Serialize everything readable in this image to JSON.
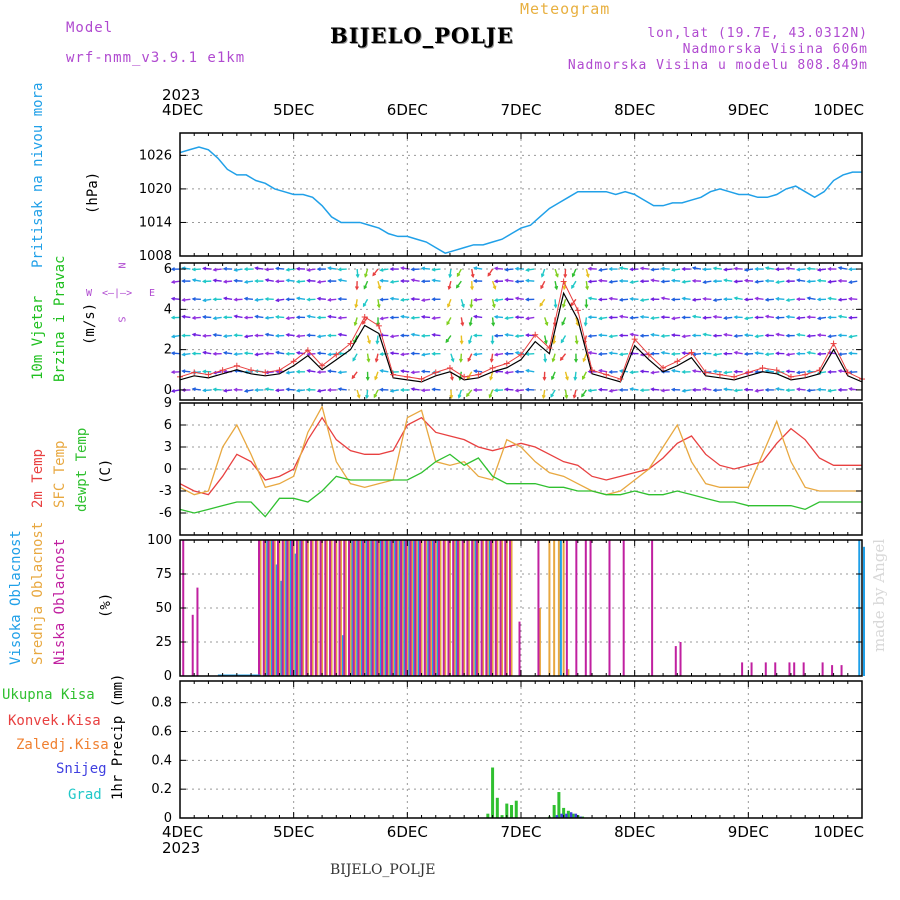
{
  "header": {
    "model_label": "Model",
    "model_name": "wrf-nmm_v3.9.1 e1km",
    "title": "BIJELO_POLJE",
    "meteogram_label": "Meteogram",
    "lonlat": "lon,lat (19.7E, 43.0312N)",
    "elevation": "Nadmorska Visina 606m",
    "model_elevation": "Nadmorska Visina u modelu 808.849m"
  },
  "footer_title": "BIJELO_POLJE",
  "watermark": "made by Angel",
  "time_axis": {
    "year_top": "2023",
    "year_bottom": "2023",
    "days": [
      "4DEC",
      "5DEC",
      "6DEC",
      "7DEC",
      "8DEC",
      "9DEC",
      "10DEC"
    ]
  },
  "panel_labels": {
    "pressure": {
      "title": "Pritisak na nivou mora",
      "unit": "(hPa)"
    },
    "wind": {
      "title1": "10m Vjetar",
      "title2": "Brzina i Pravac",
      "unit": "(m/s)",
      "compass": [
        "W",
        "E",
        "N",
        "S"
      ]
    },
    "temp": {
      "t2m": "2m Temp",
      "sfc": "SFC Temp",
      "dew": "dewpt Temp",
      "unit": "(C)"
    },
    "cloud": {
      "high": "Visoka Oblacnost",
      "mid": "Srednja Oblacnost",
      "low": "Niska Oblacnost",
      "unit": "(%)"
    },
    "precip": {
      "total": "Ukupna Kisa",
      "conv": "Konvek.Kisa",
      "frz": "Zaledj.Kisa",
      "snow": "Snijeg",
      "hail": "Grad",
      "ylabel": "1hr Precip (mm)"
    }
  },
  "colors": {
    "pressure": "#20a0e8",
    "t2m": "#e84040",
    "sfc": "#e8a840",
    "dew": "#30c030",
    "high": "#20a0e8",
    "mid": "#e8a840",
    "low": "#c020a0",
    "total": "#30c030",
    "conv": "#e84040",
    "frz": "#f08030",
    "snow": "#4040e0",
    "hail": "#20c8c8",
    "title_pressure": "#20a0e8",
    "title_wind": "#20c020",
    "purple": "#b04ad0"
  },
  "chart_data": [
    {
      "type": "line",
      "name": "pressure",
      "ylim": [
        1008,
        1030
      ],
      "yticks": [
        1008,
        1014,
        1020,
        1026
      ],
      "x_hours": [
        0,
        2,
        4,
        6,
        8,
        10,
        12,
        14,
        16,
        18,
        20,
        22,
        24,
        26,
        28,
        30,
        32,
        34,
        36,
        38,
        40,
        42,
        44,
        46,
        48,
        50,
        52,
        54,
        56,
        58,
        60,
        62,
        64,
        66,
        68,
        70,
        72,
        74,
        76,
        78,
        80,
        82,
        84,
        86,
        88,
        90,
        92,
        94,
        96,
        98,
        100,
        102,
        104,
        106,
        108,
        110,
        112,
        114,
        116,
        118,
        120,
        122,
        124,
        126,
        128,
        130,
        132,
        134,
        136,
        138,
        140,
        142,
        144
      ],
      "y": [
        1026.5,
        1027,
        1027.5,
        1027,
        1025.5,
        1023.5,
        1022.5,
        1022.5,
        1021.5,
        1021,
        1020,
        1019.5,
        1019,
        1019,
        1018.5,
        1017,
        1015,
        1014,
        1014,
        1014,
        1013.5,
        1013,
        1012,
        1011.5,
        1011.5,
        1011,
        1010.5,
        1009.5,
        1008.5,
        1009,
        1009.5,
        1010,
        1010,
        1010.5,
        1011,
        1012,
        1013,
        1013.5,
        1015,
        1016.5,
        1017.5,
        1018.5,
        1019.5,
        1019.5,
        1019.5,
        1019.5,
        1019,
        1019.5,
        1019,
        1018,
        1017,
        1017,
        1017.5,
        1017.5,
        1018,
        1018.5,
        1019.5,
        1020,
        1019.5,
        1019,
        1019,
        1018.5,
        1018.5,
        1019,
        1020,
        1020.5,
        1019.5,
        1018.5,
        1019.5,
        1021.5,
        1022.5,
        1023,
        1023
      ]
    },
    {
      "type": "line",
      "name": "wind_speed",
      "ylim": [
        -0.5,
        6.3
      ],
      "yticks": [
        0,
        2,
        4,
        6
      ],
      "x_hours": [
        0,
        3,
        6,
        9,
        12,
        15,
        18,
        21,
        24,
        27,
        30,
        33,
        36,
        39,
        42,
        45,
        48,
        51,
        54,
        57,
        60,
        63,
        66,
        69,
        72,
        75,
        78,
        81,
        84,
        87,
        90,
        93,
        96,
        99,
        102,
        105,
        108,
        111,
        114,
        117,
        120,
        123,
        126,
        129,
        132,
        135,
        138,
        141,
        144
      ],
      "y": [
        0.5,
        0.7,
        0.6,
        0.8,
        1.0,
        0.8,
        0.7,
        0.8,
        1.2,
        1.7,
        1.0,
        1.5,
        2.0,
        3.2,
        2.8,
        0.6,
        0.5,
        0.4,
        0.7,
        0.9,
        0.5,
        0.6,
        0.9,
        1.1,
        1.5,
        2.4,
        1.8,
        4.8,
        3.5,
        0.8,
        0.6,
        0.4,
        2.2,
        1.5,
        0.9,
        1.2,
        1.6,
        0.7,
        0.6,
        0.5,
        0.7,
        0.9,
        0.8,
        0.5,
        0.6,
        0.8,
        2.0,
        0.7,
        0.4
      ]
    },
    {
      "type": "line",
      "name": "temperature",
      "ylim": [
        -9,
        9
      ],
      "yticks": [
        -6,
        -3,
        0,
        3,
        6,
        9
      ],
      "x_hours": [
        0,
        3,
        6,
        9,
        12,
        15,
        18,
        21,
        24,
        27,
        30,
        33,
        36,
        39,
        42,
        45,
        48,
        51,
        54,
        57,
        60,
        63,
        66,
        69,
        72,
        75,
        78,
        81,
        84,
        87,
        90,
        93,
        96,
        99,
        102,
        105,
        108,
        111,
        114,
        117,
        120,
        123,
        126,
        129,
        132,
        135,
        138,
        141,
        144
      ],
      "series": [
        {
          "name": "2m Temp",
          "values": [
            -2.0,
            -3.0,
            -3.5,
            -1.0,
            2.0,
            1.0,
            -1.5,
            -1.0,
            0.0,
            4.0,
            7.0,
            4.0,
            2.5,
            2.0,
            2.0,
            2.5,
            6.0,
            7.0,
            5.0,
            4.5,
            4.0,
            3.0,
            2.5,
            3.0,
            3.5,
            3.0,
            2.0,
            1.0,
            0.5,
            -1.0,
            -1.5,
            -1.0,
            -0.5,
            0.0,
            1.5,
            3.5,
            4.5,
            2.0,
            0.5,
            0.0,
            0.5,
            1.0,
            3.5,
            5.5,
            4.0,
            1.5,
            0.5,
            0.5,
            0.5
          ]
        },
        {
          "name": "SFC Temp",
          "values": [
            -2.5,
            -3.5,
            -3.0,
            3.0,
            6.0,
            2.0,
            -2.5,
            -2.0,
            -1.0,
            5.0,
            8.5,
            1.0,
            -2.0,
            -2.5,
            -2.0,
            -1.5,
            7.0,
            8.0,
            1.0,
            0.5,
            1.0,
            -1.0,
            -1.5,
            4.0,
            3.0,
            1.0,
            -0.5,
            -1.0,
            -2.0,
            -3.0,
            -3.5,
            -3.0,
            -1.5,
            0.0,
            3.0,
            6.0,
            1.0,
            -2.0,
            -2.5,
            -2.5,
            -2.5,
            2.0,
            6.5,
            1.0,
            -2.5,
            -3.0,
            -3.0,
            -3.0,
            -3.0
          ]
        },
        {
          "name": "dewpt Temp",
          "values": [
            -5.5,
            -6.0,
            -5.5,
            -5.0,
            -4.5,
            -4.5,
            -6.5,
            -4.0,
            -4.0,
            -4.5,
            -3.0,
            -1.0,
            -1.5,
            -1.5,
            -1.5,
            -1.5,
            -1.5,
            -0.5,
            1.0,
            2.0,
            0.5,
            1.5,
            -1.0,
            -2.0,
            -2.0,
            -2.0,
            -2.5,
            -2.5,
            -3.0,
            -3.0,
            -3.5,
            -3.5,
            -3.0,
            -3.5,
            -3.5,
            -3.0,
            -3.5,
            -4.0,
            -4.5,
            -4.5,
            -5.0,
            -5.0,
            -5.0,
            -5.0,
            -5.5,
            -4.5,
            -4.5,
            -4.5,
            -4.5
          ]
        }
      ]
    },
    {
      "type": "bar",
      "name": "cloud_cover",
      "ylim": [
        0,
        100
      ],
      "yticks": [
        0,
        25,
        50,
        75,
        100
      ],
      "high_hours": [
        18,
        19,
        20,
        21,
        22,
        23,
        24,
        25,
        34,
        36,
        37,
        38,
        39,
        40,
        41,
        42,
        43,
        44,
        45,
        46,
        47,
        48,
        49,
        50,
        52,
        53,
        54,
        58,
        62,
        65,
        80,
        143,
        144
      ],
      "high_vals": [
        100,
        100,
        82,
        70,
        100,
        100,
        90,
        100,
        30,
        100,
        100,
        100,
        100,
        100,
        100,
        100,
        100,
        100,
        100,
        100,
        100,
        100,
        100,
        100,
        100,
        100,
        100,
        100,
        100,
        100,
        100,
        100,
        95
      ],
      "mid_hours": [
        17,
        18,
        19,
        20,
        21,
        22,
        23,
        24,
        25,
        26,
        27,
        28,
        29,
        30,
        31,
        32,
        33,
        34,
        35,
        36,
        37,
        38,
        39,
        40,
        41,
        42,
        43,
        44,
        45,
        46,
        47,
        48,
        49,
        50,
        51,
        52,
        53,
        54,
        55,
        56,
        57,
        58,
        59,
        60,
        61,
        62,
        63,
        64,
        65,
        66,
        67,
        68,
        69,
        70,
        76,
        78,
        79,
        80,
        81,
        82
      ],
      "mid_vals": [
        100,
        100,
        100,
        100,
        100,
        100,
        100,
        100,
        100,
        100,
        100,
        100,
        100,
        100,
        100,
        100,
        100,
        100,
        100,
        100,
        100,
        100,
        100,
        100,
        100,
        100,
        100,
        100,
        100,
        100,
        100,
        100,
        100,
        100,
        100,
        100,
        100,
        100,
        100,
        100,
        100,
        100,
        100,
        100,
        100,
        100,
        100,
        100,
        100,
        100,
        100,
        100,
        100,
        100,
        50,
        100,
        100,
        100,
        100,
        5
      ],
      "low_hours": [
        1,
        3,
        4,
        17,
        18,
        19,
        20,
        21,
        22,
        23,
        24,
        25,
        26,
        27,
        28,
        29,
        30,
        31,
        32,
        33,
        34,
        35,
        36,
        37,
        38,
        39,
        40,
        41,
        42,
        43,
        44,
        45,
        46,
        47,
        48,
        49,
        50,
        51,
        52,
        53,
        54,
        55,
        56,
        57,
        58,
        59,
        60,
        61,
        62,
        63,
        64,
        65,
        66,
        67,
        68,
        69,
        70,
        72,
        76,
        82,
        84,
        86,
        87,
        91,
        94,
        100,
        105,
        106,
        119,
        121,
        124,
        126,
        129,
        130,
        132,
        136,
        138,
        140
      ],
      "low_vals": [
        100,
        45,
        65,
        100,
        100,
        100,
        100,
        100,
        100,
        100,
        100,
        100,
        100,
        100,
        100,
        100,
        100,
        100,
        100,
        100,
        100,
        100,
        100,
        100,
        100,
        100,
        100,
        100,
        100,
        100,
        100,
        100,
        100,
        100,
        100,
        100,
        100,
        100,
        100,
        100,
        100,
        100,
        100,
        100,
        100,
        100,
        100,
        100,
        100,
        100,
        100,
        100,
        100,
        100,
        100,
        100,
        100,
        40,
        100,
        100,
        100,
        100,
        100,
        100,
        100,
        100,
        22,
        25,
        10,
        10,
        10,
        10,
        10,
        10,
        10,
        10,
        8,
        8
      ]
    },
    {
      "type": "bar",
      "name": "precipitation",
      "ylim": [
        0,
        0.95
      ],
      "yticks": [
        0,
        0.2,
        0.4,
        0.6,
        0.8
      ],
      "total_hours": [
        65,
        66,
        67,
        68,
        69,
        70,
        71,
        78,
        79,
        80,
        81,
        82,
        83,
        84,
        85
      ],
      "total_vals": [
        0.03,
        0.35,
        0.14,
        0.02,
        0.1,
        0.09,
        0.12,
        0.01,
        0.09,
        0.18,
        0.07,
        0.05,
        0.03,
        0.02,
        0.01
      ],
      "snow_hours": [
        79,
        80,
        81,
        82,
        83,
        84
      ],
      "snow_vals": [
        0.02,
        0.03,
        0.03,
        0.04,
        0.03,
        0.01
      ]
    }
  ]
}
